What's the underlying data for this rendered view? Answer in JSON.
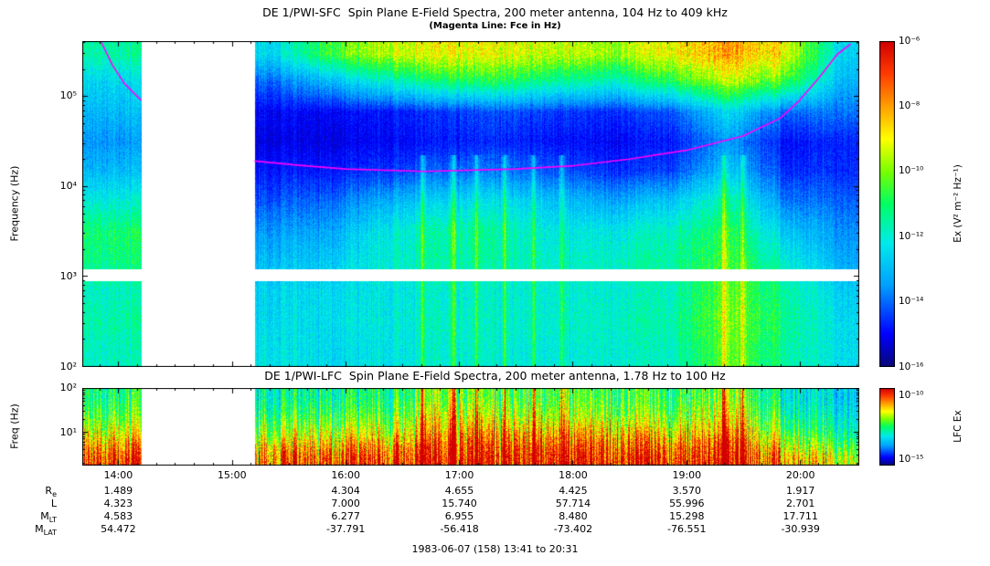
{
  "figure": {
    "background": "#ffffff",
    "accent_magenta": "#ff00ff",
    "frame_color": "#000000"
  },
  "sfc": {
    "title": "DE 1/PWI-SFC  Spin Plane E-Field Spectra, 200 meter antenna, 104 Hz to 409 kHz",
    "subtitle": "(Magenta Line: Fce in Hz)",
    "ylabel": "Frequency (Hz)",
    "yticks": [
      {
        "label": "10⁵",
        "logf": 5
      },
      {
        "label": "10⁴",
        "logf": 4
      },
      {
        "label": "10³",
        "logf": 3
      },
      {
        "label": "10²",
        "logf": 2
      }
    ],
    "colorbar": {
      "unit_label": "Ex (V² m⁻² Hz⁻¹)",
      "ticks": [
        {
          "label": "10⁻⁶",
          "value": -6
        },
        {
          "label": "10⁻⁸",
          "value": -8
        },
        {
          "label": "10⁻¹⁰",
          "value": -10
        },
        {
          "label": "10⁻¹²",
          "value": -12
        },
        {
          "label": "10⁻¹⁴",
          "value": -14
        },
        {
          "label": "10⁻¹⁶",
          "value": -16
        }
      ]
    }
  },
  "lfc": {
    "title": "DE 1/PWI-LFC  Spin Plane E-Field Spectra, 200 meter antenna, 1.78 Hz to 100 Hz",
    "ylabel": "Freq (Hz)",
    "yticks": [
      {
        "label": "10²",
        "logf": 2
      },
      {
        "label": "10¹",
        "logf": 1
      }
    ],
    "colorbar": {
      "unit_label": "LFC Ex",
      "ticks": [
        {
          "label": "10⁻¹⁰",
          "value": -10
        },
        {
          "label": "10⁻¹⁵",
          "value": -15
        }
      ]
    }
  },
  "xaxis": {
    "ticks": [
      {
        "label": "14:00",
        "hour": 14
      },
      {
        "label": "15:00",
        "hour": 15
      },
      {
        "label": "16:00",
        "hour": 16
      },
      {
        "label": "17:00",
        "hour": 17
      },
      {
        "label": "18:00",
        "hour": 18
      },
      {
        "label": "19:00",
        "hour": 19
      },
      {
        "label": "20:00",
        "hour": 20
      }
    ]
  },
  "ephemeris": {
    "rows": [
      {
        "label_base": "R",
        "label_sub": "e",
        "values": [
          "1.489",
          "",
          "4.304",
          "4.655",
          "4.425",
          "3.570",
          "1.917"
        ]
      },
      {
        "label_base": "L",
        "label_sub": "",
        "values": [
          "4.323",
          "",
          "7.000",
          "15.740",
          "57.714",
          "55.996",
          "2.701"
        ]
      },
      {
        "label_base": "M",
        "label_sub": "LT",
        "values": [
          "4.583",
          "",
          "6.277",
          "6.955",
          "8.480",
          "15.298",
          "17.711"
        ]
      },
      {
        "label_base": "M",
        "label_sub": "LAT",
        "values": [
          "54.472",
          "",
          "-37.791",
          "-56.418",
          "-73.402",
          "-76.551",
          "-30.939"
        ]
      }
    ]
  },
  "footer": "1983-06-07 (158) 13:41 to 20:31",
  "chart_data": {
    "type": "heatmap",
    "description": "Two-panel DE 1 PWI frequency-time E-field spectrogram; intensities are estimated log10 spectral density on a coarse grid (rows low-to-high frequency, columns half-hour time bins). White vertical band is a data gap; magenta curve is the electron cyclotron frequency Fce.",
    "time_range_hours": [
      13.683,
      20.517
    ],
    "time_gap_hours": [
      14.2,
      15.2
    ],
    "column_times_hours": [
      13.87,
      14.37,
      14.87,
      15.37,
      15.87,
      16.37,
      16.87,
      17.37,
      17.87,
      18.37,
      18.87,
      19.37,
      19.87,
      20.37
    ],
    "burst_times_hours": [
      16.68,
      16.95,
      17.15,
      17.4,
      17.65,
      17.9,
      19.33,
      19.5
    ],
    "panels": [
      {
        "name": "SFC",
        "freq_log10_range": [
          2.0,
          5.612
        ],
        "value_log10_range": [
          -16,
          -6
        ],
        "white_band_log10_freq": [
          2.95,
          3.08
        ],
        "row_center_log10_freq": [
          2.17,
          2.5,
          2.83,
          3.17,
          3.5,
          3.83,
          4.17,
          4.5,
          4.83,
          5.17,
          5.47
        ],
        "grid_log10_ex": [
          [
            -11.8,
            null,
            null,
            -12.3,
            -12.5,
            -12.3,
            -12.0,
            -12.0,
            -12.2,
            -12.0,
            -11.8,
            -10.2,
            -11.5,
            -12.3
          ],
          [
            -11.5,
            null,
            null,
            -12.5,
            -12.4,
            -12.2,
            -11.8,
            -11.9,
            -12.0,
            -11.8,
            -11.6,
            -10.0,
            -11.3,
            -12.4
          ],
          [
            -11.8,
            null,
            null,
            -12.6,
            -12.5,
            -12.3,
            -12.0,
            -12.0,
            -12.1,
            -12.0,
            -11.8,
            -10.2,
            -11.5,
            -12.6
          ],
          [
            -11.2,
            null,
            null,
            -13.0,
            -12.8,
            -12.0,
            -11.6,
            -11.6,
            -12.0,
            -11.8,
            -11.5,
            -10.5,
            -12.0,
            -13.2
          ],
          [
            -11.0,
            null,
            null,
            -13.5,
            -13.3,
            -12.2,
            -11.5,
            -11.5,
            -12.3,
            -12.2,
            -11.8,
            -10.8,
            -12.8,
            -13.5
          ],
          [
            -12.0,
            null,
            null,
            -14.2,
            -14.0,
            -13.2,
            -12.5,
            -12.3,
            -13.0,
            -13.3,
            -12.8,
            -11.5,
            -13.8,
            -14.0
          ],
          [
            -13.0,
            null,
            null,
            -14.8,
            -14.8,
            -14.5,
            -14.0,
            -13.8,
            -14.3,
            -14.6,
            -14.4,
            -12.8,
            -14.6,
            -14.5
          ],
          [
            -13.5,
            null,
            null,
            -15.2,
            -15.2,
            -15.0,
            -14.8,
            -14.6,
            -14.9,
            -15.0,
            -14.8,
            -13.5,
            -14.9,
            -14.6
          ],
          [
            -13.0,
            null,
            null,
            -15.0,
            -15.0,
            -14.8,
            -14.5,
            -14.2,
            -14.5,
            -14.6,
            -14.2,
            -12.5,
            -14.0,
            -13.8
          ],
          [
            -12.5,
            null,
            null,
            -14.0,
            -13.0,
            -12.0,
            -11.0,
            -10.8,
            -11.5,
            -11.8,
            -10.8,
            -9.5,
            -10.5,
            -13.0
          ],
          [
            -11.5,
            null,
            null,
            -12.5,
            -10.5,
            -9.5,
            -9.0,
            -9.0,
            -9.5,
            -9.8,
            -9.0,
            -8.0,
            -9.0,
            -12.5
          ]
        ],
        "fce_line_hz": {
          "pre_gap": [
            [
              13.85,
              400000
            ],
            [
              13.95,
              220000
            ],
            [
              14.05,
              140000
            ],
            [
              14.2,
              90000
            ]
          ],
          "post_gap": [
            [
              15.2,
              19000
            ],
            [
              15.6,
              17000
            ],
            [
              16.0,
              15500
            ],
            [
              16.7,
              14600
            ],
            [
              17.5,
              15500
            ],
            [
              18.0,
              16800
            ],
            [
              18.5,
              20000
            ],
            [
              19.0,
              25000
            ],
            [
              19.5,
              36000
            ],
            [
              19.83,
              57000
            ],
            [
              20.0,
              90000
            ],
            [
              20.17,
              160000
            ],
            [
              20.33,
              290000
            ],
            [
              20.45,
              380000
            ]
          ]
        }
      },
      {
        "name": "LFC",
        "freq_log10_range": [
          0.25,
          2.0
        ],
        "value_log10_range": [
          -15,
          -10
        ],
        "white_band_log10_freq": null,
        "row_center_log10_freq": [
          0.4,
          0.65,
          0.9,
          1.15,
          1.45,
          1.8
        ],
        "grid_log10_ex": [
          [
            -10.3,
            null,
            null,
            -10.8,
            -10.5,
            -10.5,
            -10.2,
            -10.2,
            -10.3,
            -10.3,
            -10.4,
            -10.2,
            -11.0,
            -11.5
          ],
          [
            -10.8,
            null,
            null,
            -11.2,
            -11.0,
            -11.0,
            -10.4,
            -10.4,
            -10.6,
            -10.6,
            -10.8,
            -10.4,
            -11.5,
            -12.0
          ],
          [
            -11.3,
            null,
            null,
            -11.8,
            -11.5,
            -11.6,
            -10.8,
            -10.8,
            -11.0,
            -11.0,
            -11.3,
            -10.8,
            -12.0,
            -12.5
          ],
          [
            -11.8,
            null,
            null,
            -12.2,
            -12.0,
            -12.0,
            -11.2,
            -11.3,
            -11.5,
            -11.5,
            -11.8,
            -11.2,
            -12.4,
            -12.8
          ],
          [
            -12.2,
            null,
            null,
            -12.6,
            -12.4,
            -12.4,
            -11.6,
            -11.8,
            -12.0,
            -12.0,
            -12.2,
            -11.6,
            -12.8,
            -13.0
          ],
          [
            -12.5,
            null,
            null,
            -12.9,
            -12.7,
            -12.7,
            -12.0,
            -12.2,
            -12.3,
            -12.3,
            -12.5,
            -12.0,
            -13.0,
            -13.2
          ]
        ]
      }
    ]
  }
}
